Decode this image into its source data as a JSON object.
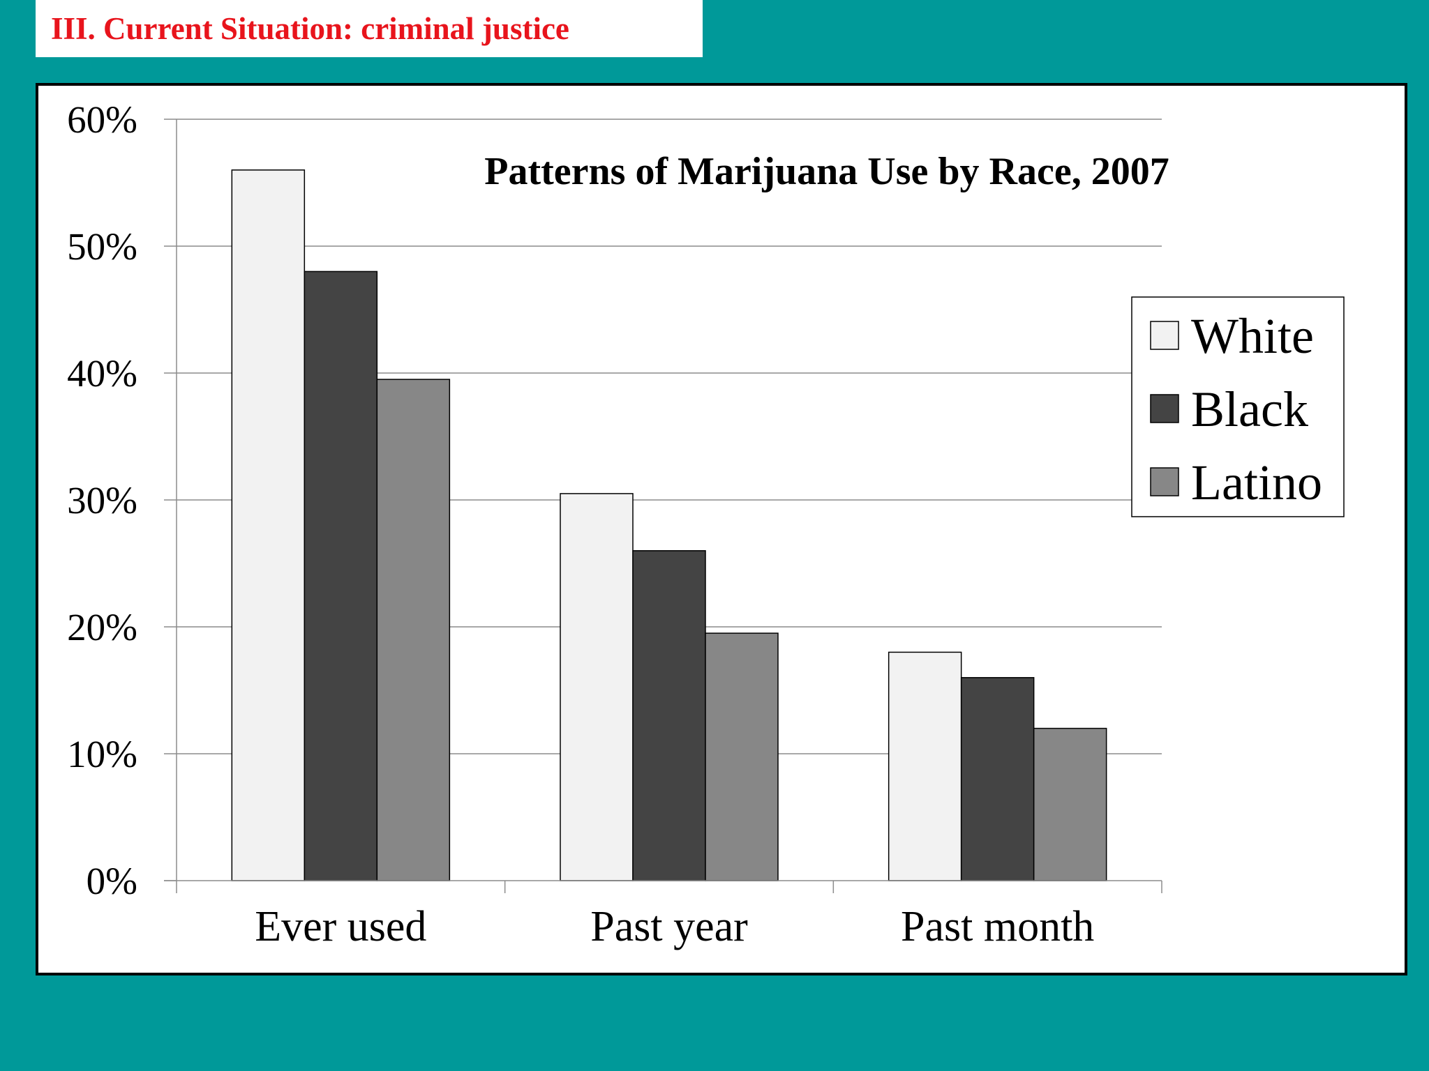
{
  "slide": {
    "title": "III. Current Situation: criminal justice",
    "background": "#009999",
    "title_color": "#e8141c"
  },
  "chart_data": {
    "type": "bar",
    "title": "Patterns of Marijuana Use by Race, 2007",
    "categories": [
      "Ever used",
      "Past year",
      "Past month"
    ],
    "series": [
      {
        "name": "White",
        "values": [
          56,
          30.5,
          18
        ],
        "color": "#f2f2f2"
      },
      {
        "name": "Black",
        "values": [
          48,
          26,
          16
        ],
        "color": "#444444"
      },
      {
        "name": "Latino",
        "values": [
          39.5,
          19.5,
          12
        ],
        "color": "#878787"
      }
    ],
    "yticks": [
      "0%",
      "10%",
      "20%",
      "30%",
      "40%",
      "50%",
      "60%"
    ],
    "ylim": [
      0,
      60
    ],
    "grid": true,
    "legend_position": "right"
  }
}
